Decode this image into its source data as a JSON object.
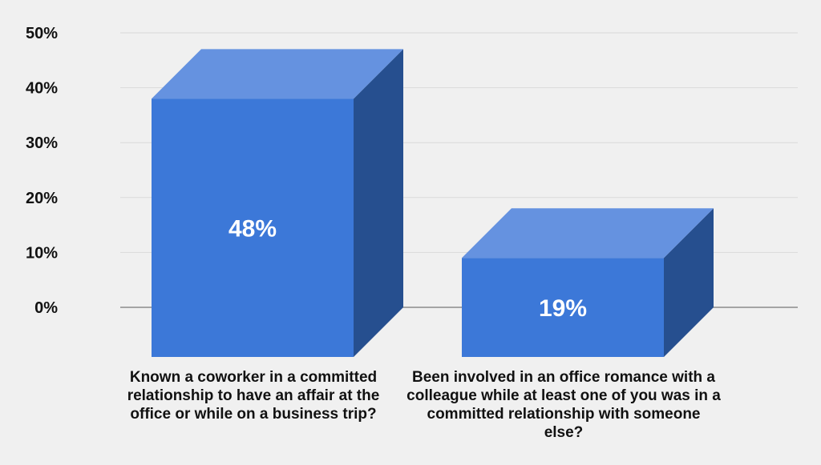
{
  "chart_data": {
    "type": "bar",
    "categories": [
      "Known a coworker in a committed relationship to have an affair at the office or while on a business trip?",
      "Been involved in an office romance with a colleague while at least one of you was in a committed relationship with someone else?"
    ],
    "values": [
      48,
      19
    ],
    "value_labels": [
      "48%",
      "19%"
    ],
    "y_ticks": [
      "0%",
      "10%",
      "20%",
      "30%",
      "40%",
      "50%"
    ],
    "ylim": [
      0,
      50
    ],
    "grid": true,
    "legend": "none",
    "style": "3d",
    "colors": {
      "bar_front": "#3c78d8",
      "bar_top": "#6592e0",
      "bar_side": "#264f8f",
      "grid": "#d9d9d9",
      "axis": "#777777",
      "background": "#f0f0f0"
    }
  }
}
